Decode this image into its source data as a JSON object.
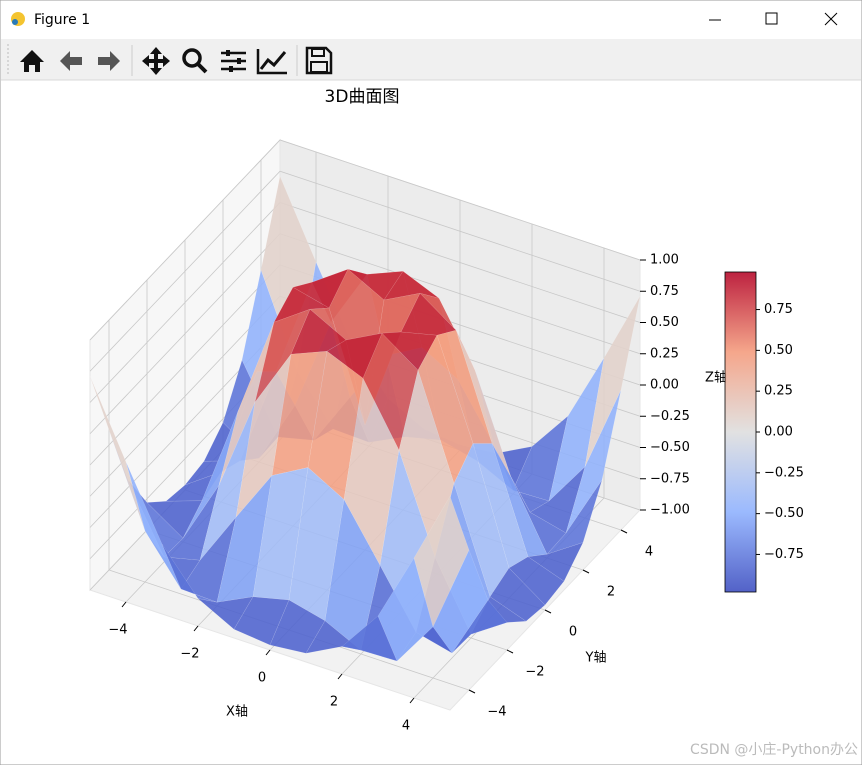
{
  "window": {
    "title": "Figure 1"
  },
  "chart_data": {
    "type": "surface",
    "title": "3D曲面图",
    "xlabel": "X轴",
    "ylabel": "Y轴",
    "zlabel": "Z轴",
    "x": [
      -5,
      -4,
      -3,
      -2,
      -1,
      0,
      1,
      2,
      3,
      4,
      5
    ],
    "y": [
      -5,
      -4,
      -3,
      -2,
      -1,
      0,
      1,
      2,
      3,
      4,
      5
    ],
    "z": [
      [
        0.71,
        0.12,
        -0.44,
        -0.78,
        -0.93,
        -0.96,
        -0.93,
        -0.78,
        -0.44,
        0.12,
        0.71
      ],
      [
        0.12,
        -0.59,
        -0.96,
        -0.97,
        -0.83,
        -0.76,
        -0.83,
        -0.97,
        -0.96,
        -0.59,
        0.12
      ],
      [
        -0.44,
        -0.96,
        -0.89,
        -0.45,
        -0.02,
        0.14,
        -0.02,
        -0.45,
        -0.89,
        -0.96,
        -0.44
      ],
      [
        -0.78,
        -0.97,
        -0.45,
        0.31,
        0.79,
        0.91,
        0.79,
        0.31,
        -0.45,
        -0.97,
        -0.78
      ],
      [
        -0.93,
        -0.83,
        -0.02,
        0.79,
        0.99,
        0.84,
        0.99,
        0.79,
        -0.02,
        -0.83,
        -0.93
      ],
      [
        -0.96,
        -0.76,
        0.14,
        0.91,
        0.84,
        0,
        0.84,
        0.91,
        0.14,
        -0.76,
        -0.96
      ],
      [
        -0.93,
        -0.83,
        -0.02,
        0.79,
        0.99,
        0.84,
        0.99,
        0.79,
        -0.02,
        -0.83,
        -0.93
      ],
      [
        -0.78,
        -0.97,
        -0.45,
        0.31,
        0.79,
        0.91,
        0.79,
        0.31,
        -0.45,
        -0.97,
        -0.78
      ],
      [
        -0.44,
        -0.96,
        -0.89,
        -0.45,
        -0.02,
        0.14,
        -0.02,
        -0.45,
        -0.89,
        -0.96,
        -0.44
      ],
      [
        0.12,
        -0.59,
        -0.96,
        -0.97,
        -0.83,
        -0.76,
        -0.83,
        -0.97,
        -0.96,
        -0.59,
        0.12
      ],
      [
        0.71,
        0.12,
        -0.44,
        -0.78,
        -0.93,
        -0.96,
        -0.93,
        -0.78,
        -0.44,
        0.12,
        0.71
      ]
    ],
    "xlim": [
      -5,
      5
    ],
    "ylim": [
      -5,
      5
    ],
    "zlim": [
      -1,
      1
    ],
    "xticks": [
      {
        "value": -4,
        "label": "−4"
      },
      {
        "value": -2,
        "label": "−2"
      },
      0,
      2,
      4
    ],
    "yticks": [
      {
        "value": -4,
        "label": "−4"
      },
      {
        "value": -2,
        "label": "−2"
      },
      0,
      2,
      4
    ],
    "zticks": [
      {
        "value": -1,
        "label": "−1.00"
      },
      {
        "value": -0.75,
        "label": "−0.75"
      },
      {
        "value": -0.5,
        "label": "−0.50"
      },
      {
        "value": -0.25,
        "label": "−0.25"
      },
      {
        "value": 0,
        "label": "0.00"
      },
      0.25,
      {
        "value": 0.5,
        "label": "0.50"
      },
      0.75,
      {
        "value": 1,
        "label": "1.00"
      }
    ],
    "colormap": [
      "#3b4cc0",
      "#8db0fe",
      "#dddddd",
      "#f49a7b",
      "#b40426"
    ],
    "colorbar": {
      "clim": [
        -0.98,
        0.98
      ],
      "ticks": [
        {
          "value": -0.75,
          "label": "−0.75"
        },
        {
          "value": -0.5,
          "label": "−0.50"
        },
        {
          "value": -0.25,
          "label": "−0.25"
        },
        {
          "value": 0,
          "label": "0.00"
        },
        0.25,
        {
          "value": 0.5,
          "label": "0.50"
        },
        0.75
      ]
    },
    "grid": true
  },
  "watermark": "CSDN @小庄-Python办公"
}
